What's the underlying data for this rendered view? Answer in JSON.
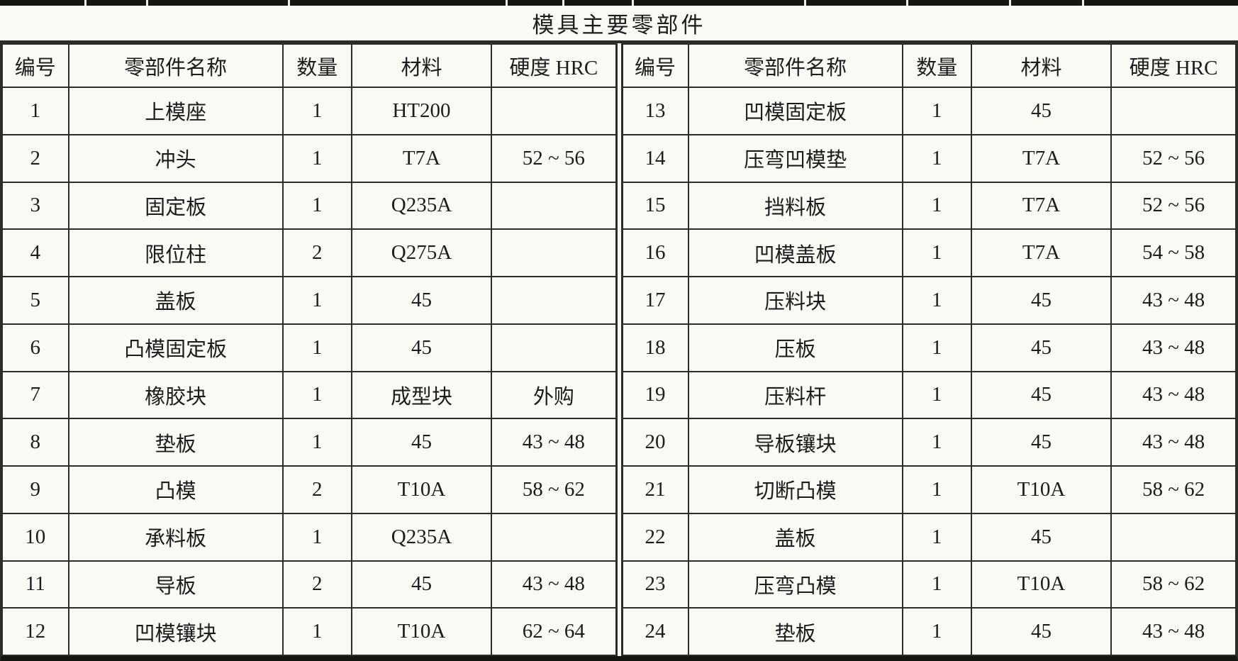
{
  "title": "模具主要零部件",
  "header": {
    "cols": [
      "编号",
      "零部件名称",
      "数量",
      "材料",
      "硬度 HRC"
    ]
  },
  "tables": {
    "left": {
      "rows": [
        [
          "1",
          "上模座",
          "1",
          "HT200",
          ""
        ],
        [
          "2",
          "冲头",
          "1",
          "T7A",
          "52 ~ 56"
        ],
        [
          "3",
          "固定板",
          "1",
          "Q235A",
          ""
        ],
        [
          "4",
          "限位柱",
          "2",
          "Q275A",
          ""
        ],
        [
          "5",
          "盖板",
          "1",
          "45",
          ""
        ],
        [
          "6",
          "凸模固定板",
          "1",
          "45",
          ""
        ],
        [
          "7",
          "橡胶块",
          "1",
          "成型块",
          "外购"
        ],
        [
          "8",
          "垫板",
          "1",
          "45",
          "43 ~ 48"
        ],
        [
          "9",
          "凸模",
          "2",
          "T10A",
          "58 ~ 62"
        ],
        [
          "10",
          "承料板",
          "1",
          "Q235A",
          ""
        ],
        [
          "11",
          "导板",
          "2",
          "45",
          "43 ~ 48"
        ],
        [
          "12",
          "凹模镶块",
          "1",
          "T10A",
          "62 ~ 64"
        ]
      ]
    },
    "right": {
      "rows": [
        [
          "13",
          "凹模固定板",
          "1",
          "45",
          ""
        ],
        [
          "14",
          "压弯凹模垫",
          "1",
          "T7A",
          "52 ~ 56"
        ],
        [
          "15",
          "挡料板",
          "1",
          "T7A",
          "52 ~ 56"
        ],
        [
          "16",
          "凹模盖板",
          "1",
          "T7A",
          "54 ~ 58"
        ],
        [
          "17",
          "压料块",
          "1",
          "45",
          "43 ~ 48"
        ],
        [
          "18",
          "压板",
          "1",
          "45",
          "43 ~ 48"
        ],
        [
          "19",
          "压料杆",
          "1",
          "45",
          "43 ~ 48"
        ],
        [
          "20",
          "导板镶块",
          "1",
          "45",
          "43 ~ 48"
        ],
        [
          "21",
          "切断凸模",
          "1",
          "T10A",
          "58 ~ 62"
        ],
        [
          "22",
          "盖板",
          "1",
          "45",
          ""
        ],
        [
          "23",
          "压弯凸模",
          "1",
          "T10A",
          "58 ~ 62"
        ],
        [
          "24",
          "垫板",
          "1",
          "45",
          "43 ~ 48"
        ]
      ]
    }
  },
  "colors": {
    "background": "#fbf9f4",
    "text": "#1c1c1c",
    "border": "#2e2c28",
    "top_strip": "#171512"
  }
}
